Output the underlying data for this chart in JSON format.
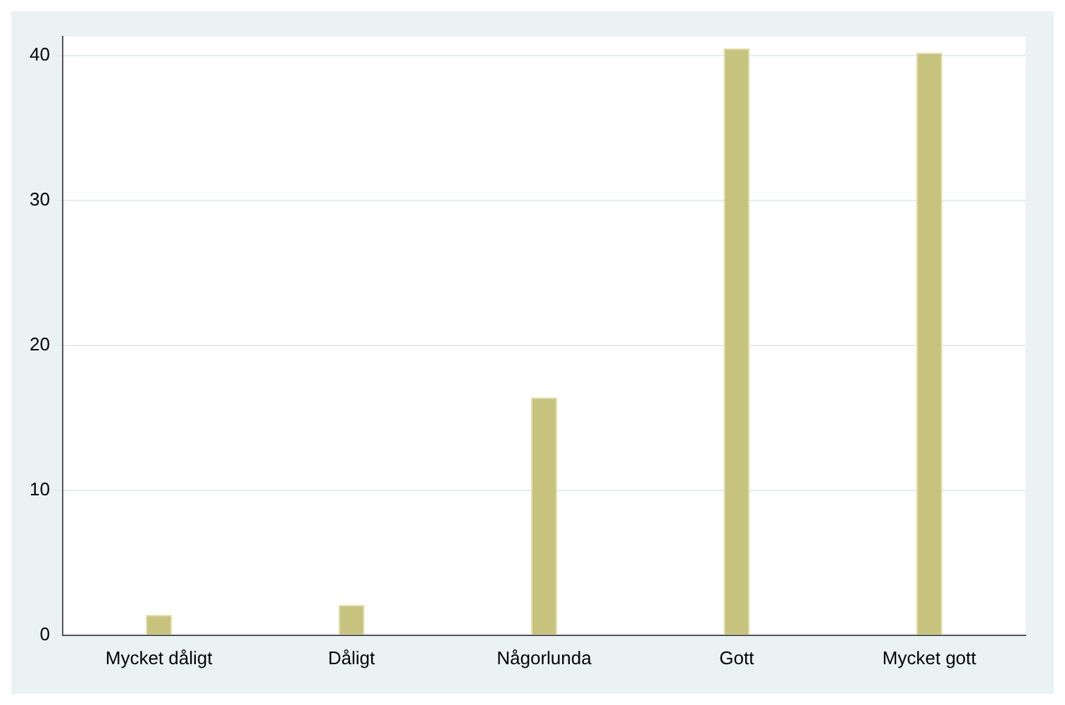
{
  "chart_data": {
    "type": "bar",
    "categories": [
      "Mycket dåligt",
      "Dåligt",
      "Någorlunda",
      "Gott",
      "Mycket gott"
    ],
    "values": [
      1.4,
      2.1,
      16.4,
      40.5,
      40.2
    ],
    "color": "#c8c27f",
    "ylim": [
      0,
      41.3
    ],
    "yticks": [
      0,
      10,
      20,
      30,
      40
    ],
    "grid": "y"
  }
}
